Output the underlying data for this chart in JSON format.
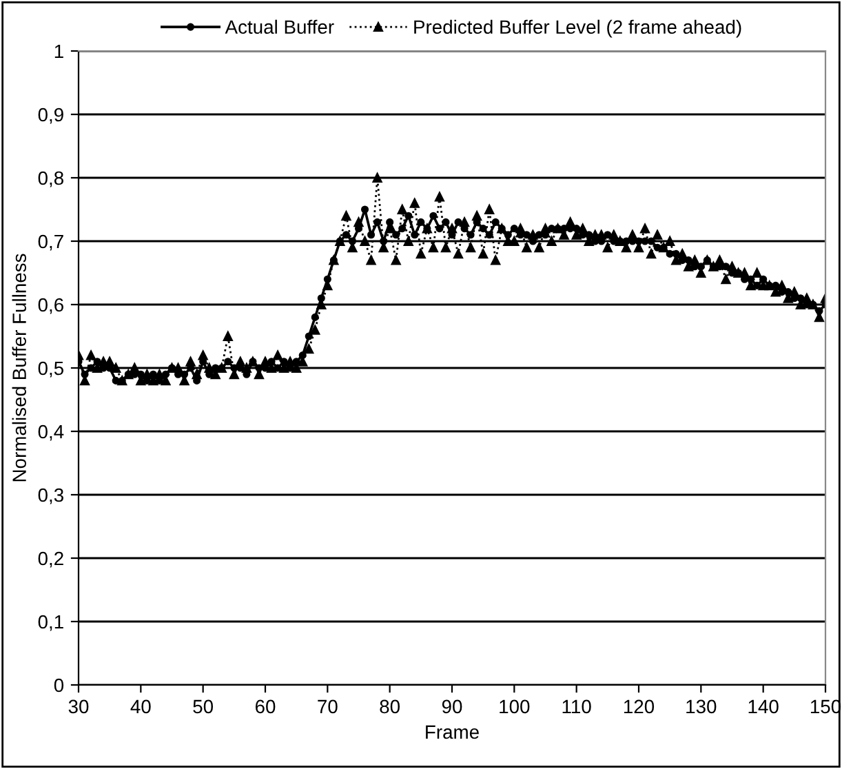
{
  "chart_data": {
    "type": "line",
    "xlabel": "Frame",
    "ylabel": "Normalised Buffer Fullness",
    "xlim": [
      30,
      150
    ],
    "xticks": [
      30,
      40,
      50,
      60,
      70,
      80,
      90,
      100,
      110,
      120,
      130,
      140,
      150
    ],
    "ylim": [
      0,
      1
    ],
    "yticks": [
      0,
      {
        "value": 0.1,
        "label": "0,1"
      },
      {
        "value": 0.2,
        "label": "0,2"
      },
      {
        "value": 0.3,
        "label": "0,3"
      },
      {
        "value": 0.4,
        "label": "0,4"
      },
      {
        "value": 0.5,
        "label": "0,5"
      },
      {
        "value": 0.6,
        "label": "0,6"
      },
      {
        "value": 0.7,
        "label": "0,7"
      },
      {
        "value": 0.8,
        "label": "0,8"
      },
      {
        "value": 0.9,
        "label": "0,9"
      },
      1
    ],
    "grid": "y",
    "legend": "top",
    "x": [
      30,
      31,
      32,
      33,
      34,
      35,
      36,
      37,
      38,
      39,
      40,
      41,
      42,
      43,
      44,
      45,
      46,
      47,
      48,
      49,
      50,
      51,
      52,
      53,
      54,
      55,
      56,
      57,
      58,
      59,
      60,
      61,
      62,
      63,
      64,
      65,
      66,
      67,
      68,
      69,
      70,
      71,
      72,
      73,
      74,
      75,
      76,
      77,
      78,
      79,
      80,
      81,
      82,
      83,
      84,
      85,
      86,
      87,
      88,
      89,
      90,
      91,
      92,
      93,
      94,
      95,
      96,
      97,
      98,
      99,
      100,
      101,
      102,
      103,
      104,
      105,
      106,
      107,
      108,
      109,
      110,
      111,
      112,
      113,
      114,
      115,
      116,
      117,
      118,
      119,
      120,
      121,
      122,
      123,
      124,
      125,
      126,
      127,
      128,
      129,
      130,
      131,
      132,
      133,
      134,
      135,
      136,
      137,
      138,
      139,
      140,
      141,
      142,
      143,
      144,
      145,
      146,
      147,
      148,
      149,
      150
    ],
    "series": [
      {
        "name": "Actual Buffer",
        "color": "#000000",
        "marker": "circle",
        "line_style": "solid",
        "values": [
          0.51,
          0.49,
          0.5,
          0.51,
          0.5,
          0.5,
          0.48,
          0.48,
          0.49,
          0.49,
          0.49,
          0.48,
          0.49,
          0.48,
          0.49,
          0.5,
          0.49,
          0.49,
          0.5,
          0.48,
          0.51,
          0.49,
          0.5,
          0.5,
          0.51,
          0.5,
          0.5,
          0.49,
          0.51,
          0.5,
          0.5,
          0.51,
          0.5,
          0.51,
          0.5,
          0.51,
          0.52,
          0.55,
          0.58,
          0.61,
          0.64,
          0.67,
          0.7,
          0.71,
          0.7,
          0.72,
          0.75,
          0.71,
          0.73,
          0.7,
          0.73,
          0.71,
          0.72,
          0.74,
          0.71,
          0.73,
          0.72,
          0.74,
          0.72,
          0.73,
          0.71,
          0.73,
          0.72,
          0.71,
          0.73,
          0.72,
          0.71,
          0.73,
          0.72,
          0.71,
          0.72,
          0.71,
          0.71,
          0.7,
          0.71,
          0.71,
          0.72,
          0.72,
          0.72,
          0.72,
          0.72,
          0.71,
          0.71,
          0.7,
          0.7,
          0.71,
          0.7,
          0.7,
          0.7,
          0.7,
          0.7,
          0.7,
          0.7,
          0.69,
          0.69,
          0.68,
          0.68,
          0.67,
          0.67,
          0.66,
          0.66,
          0.67,
          0.66,
          0.66,
          0.66,
          0.65,
          0.65,
          0.64,
          0.64,
          0.63,
          0.64,
          0.63,
          0.63,
          0.62,
          0.62,
          0.61,
          0.61,
          0.6,
          0.6,
          0.59,
          0.6
        ]
      },
      {
        "name": "Predicted Buffer Level (2 frame ahead)",
        "color": "#000000",
        "marker": "triangle",
        "line_style": "dotted",
        "values": [
          0.52,
          0.48,
          0.52,
          0.5,
          0.51,
          0.51,
          0.5,
          0.48,
          0.49,
          0.5,
          0.48,
          0.49,
          0.48,
          0.49,
          0.48,
          0.5,
          0.5,
          0.48,
          0.51,
          0.49,
          0.52,
          0.5,
          0.49,
          0.5,
          0.55,
          0.49,
          0.51,
          0.5,
          0.51,
          0.49,
          0.51,
          0.5,
          0.52,
          0.5,
          0.51,
          0.5,
          0.51,
          0.53,
          0.56,
          0.6,
          0.63,
          0.67,
          0.7,
          0.74,
          0.69,
          0.73,
          0.7,
          0.67,
          0.8,
          0.69,
          0.72,
          0.67,
          0.75,
          0.7,
          0.76,
          0.68,
          0.72,
          0.69,
          0.77,
          0.69,
          0.72,
          0.68,
          0.73,
          0.69,
          0.74,
          0.68,
          0.75,
          0.67,
          0.72,
          0.7,
          0.7,
          0.72,
          0.69,
          0.71,
          0.69,
          0.72,
          0.7,
          0.72,
          0.71,
          0.73,
          0.71,
          0.72,
          0.7,
          0.71,
          0.71,
          0.69,
          0.71,
          0.7,
          0.69,
          0.71,
          0.69,
          0.72,
          0.68,
          0.71,
          0.69,
          0.7,
          0.67,
          0.68,
          0.66,
          0.67,
          0.65,
          0.67,
          0.66,
          0.67,
          0.64,
          0.66,
          0.65,
          0.65,
          0.63,
          0.65,
          0.63,
          0.63,
          0.62,
          0.63,
          0.61,
          0.62,
          0.6,
          0.61,
          0.6,
          0.58,
          0.61
        ]
      }
    ]
  }
}
